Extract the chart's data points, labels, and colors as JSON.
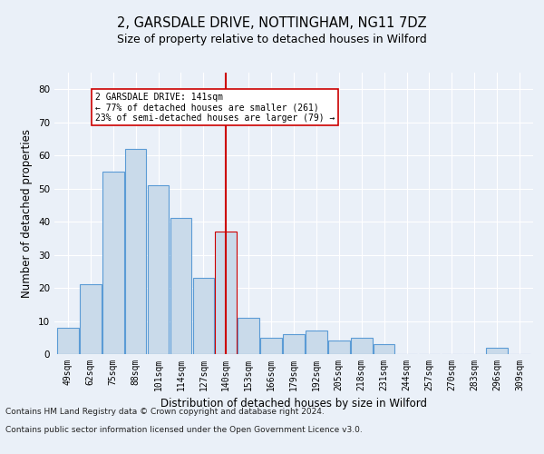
{
  "title": "2, GARSDALE DRIVE, NOTTINGHAM, NG11 7DZ",
  "subtitle": "Size of property relative to detached houses in Wilford",
  "xlabel": "Distribution of detached houses by size in Wilford",
  "ylabel": "Number of detached properties",
  "footer_line1": "Contains HM Land Registry data © Crown copyright and database right 2024.",
  "footer_line2": "Contains public sector information licensed under the Open Government Licence v3.0.",
  "categories": [
    "49sqm",
    "62sqm",
    "75sqm",
    "88sqm",
    "101sqm",
    "114sqm",
    "127sqm",
    "140sqm",
    "153sqm",
    "166sqm",
    "179sqm",
    "192sqm",
    "205sqm",
    "218sqm",
    "231sqm",
    "244sqm",
    "257sqm",
    "270sqm",
    "283sqm",
    "296sqm",
    "309sqm"
  ],
  "bar_heights": [
    8,
    21,
    55,
    62,
    51,
    41,
    23,
    37,
    11,
    5,
    6,
    7,
    4,
    5,
    3,
    0,
    0,
    0,
    0,
    2,
    0
  ],
  "bar_color": "#c9daea",
  "bar_edge_color": "#5b9bd5",
  "highlight_bar_index": 7,
  "highlight_bar_edge_color": "#cc0000",
  "vline_color": "#cc0000",
  "annotation_text": "2 GARSDALE DRIVE: 141sqm\n← 77% of detached houses are smaller (261)\n23% of semi-detached houses are larger (79) →",
  "annotation_box_color": "#ffffff",
  "annotation_box_edge_color": "#cc0000",
  "ylim": [
    0,
    85
  ],
  "yticks": [
    0,
    10,
    20,
    30,
    40,
    50,
    60,
    70,
    80
  ],
  "bg_color": "#eaf0f8",
  "plot_bg_color": "#eaf0f8",
  "grid_color": "#ffffff",
  "title_fontsize": 10.5,
  "subtitle_fontsize": 9,
  "tick_fontsize": 7,
  "ylabel_fontsize": 8.5,
  "xlabel_fontsize": 8.5,
  "footer_fontsize": 6.5
}
